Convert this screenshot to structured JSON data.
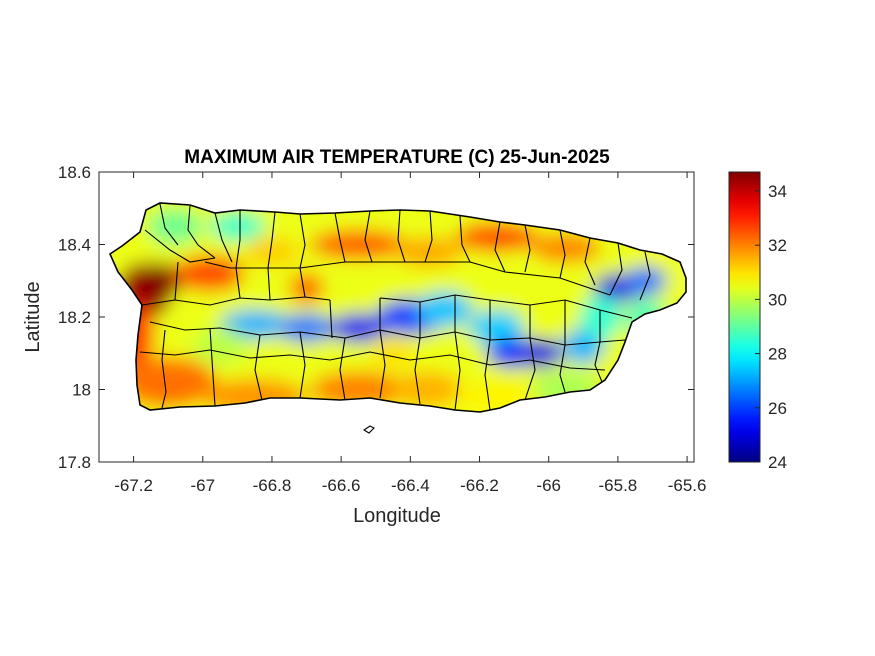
{
  "map": {
    "title": "MAXIMUM AIR TEMPERATURE (C) 25-Jun-2025",
    "xlabel": "Longitude",
    "ylabel": "Latitude",
    "xlim": [
      -67.3,
      -65.58
    ],
    "ylim": [
      17.8,
      18.6
    ],
    "xticks": [
      -67.2,
      -67,
      -66.8,
      -66.6,
      -66.4,
      -66.2,
      -66,
      -65.8,
      -65.6
    ],
    "xtick_labels": [
      "-67.2",
      "-67",
      "-66.8",
      "-66.6",
      "-66.4",
      "-66.2",
      "-66",
      "-65.8",
      "-65.6"
    ],
    "yticks": [
      17.8,
      18,
      18.2,
      18.4,
      18.6
    ],
    "ytick_labels": [
      "17.8",
      "18",
      "18.2",
      "18.4",
      "18.6"
    ],
    "colorbar": {
      "colormap": "jet",
      "min": 24,
      "max": 34.7,
      "ticks": [
        24,
        26,
        28,
        30,
        32,
        34
      ],
      "tick_labels": [
        "24",
        "26",
        "28",
        "30",
        "32",
        "34"
      ]
    },
    "region": "Puerto Rico",
    "hotspots_note": "hottest in far west near -67.15/18.28 (~34-35 C); cool band (~24-27 C) along central mountains and near -65.8/18.28"
  }
}
